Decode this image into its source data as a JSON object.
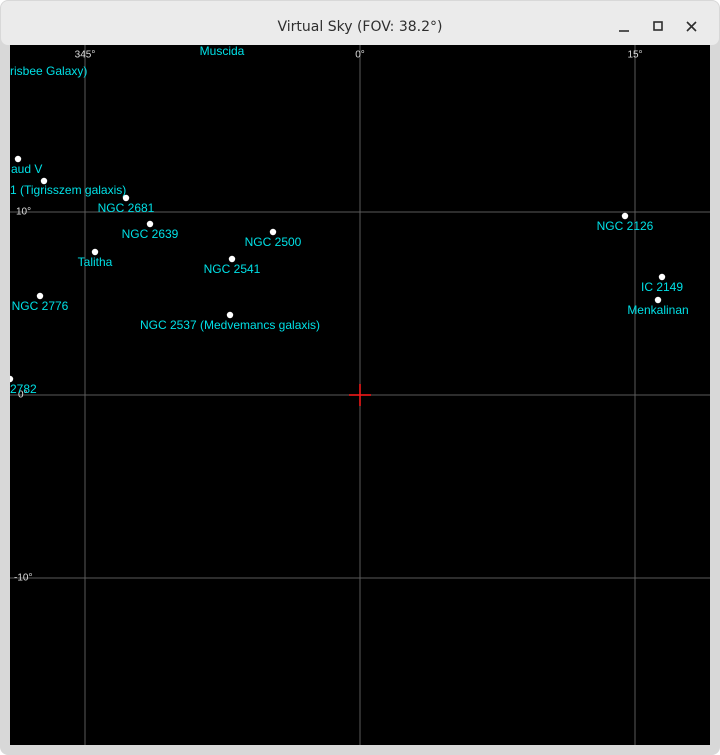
{
  "window": {
    "title": "Virtual Sky (FOV: 38.2°)"
  },
  "grid": {
    "ra_labels": [
      "345°",
      "0°",
      "15°"
    ],
    "dec_labels": [
      "10°",
      "0°",
      "-10°"
    ]
  },
  "objects": [
    {
      "label": "Muscida"
    },
    {
      "label": "risbee Galaxy)"
    },
    {
      "label": "aud V"
    },
    {
      "label": "1 (Tigrisszem galaxis)"
    },
    {
      "label": "NGC 2681"
    },
    {
      "label": "NGC 2639"
    },
    {
      "label": "NGC 2500"
    },
    {
      "label": "Talitha"
    },
    {
      "label": "NGC 2541"
    },
    {
      "label": "NGC 2776"
    },
    {
      "label": "NGC 2537 (Medvemancs galaxis)"
    },
    {
      "label": "2782"
    },
    {
      "label": "NGC 2126"
    },
    {
      "label": "IC 2149"
    },
    {
      "label": "Menkalinan"
    }
  ]
}
